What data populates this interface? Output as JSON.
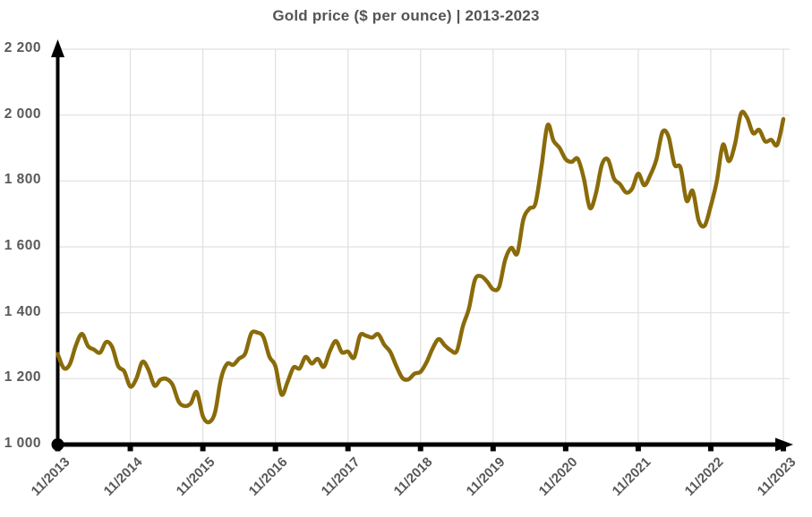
{
  "chart_data": {
    "type": "line",
    "title": "Gold price ($ per ounce) | 2013-2023",
    "series_name": "Gold price",
    "unit": "$ per ounce",
    "x_start_month": "11/2013",
    "x_end_month": "11/2023",
    "x_tick_labels": [
      "11/2013",
      "11/2014",
      "11/2015",
      "11/2016",
      "11/2017",
      "11/2018",
      "11/2019",
      "11/2020",
      "11/2021",
      "11/2022",
      "11/2023"
    ],
    "y_tick_labels": [
      "1 000",
      "1 200",
      "1 400",
      "1 600",
      "1 800",
      "2 000",
      "2 200"
    ],
    "ylim": [
      1000,
      2200
    ],
    "y_step": 200,
    "months_per_x_tick": 12,
    "grid": true,
    "legend": false,
    "monthly_values": [
      1275,
      1232,
      1244,
      1301,
      1336,
      1299,
      1288,
      1279,
      1311,
      1296,
      1238,
      1222,
      1176,
      1200,
      1251,
      1227,
      1179,
      1197,
      1199,
      1181,
      1130,
      1117,
      1125,
      1159,
      1086,
      1068,
      1097,
      1200,
      1245,
      1242,
      1261,
      1276,
      1337,
      1340,
      1327,
      1267,
      1238,
      1152,
      1190,
      1234,
      1231,
      1266,
      1246,
      1260,
      1236,
      1283,
      1314,
      1280,
      1282,
      1264,
      1331,
      1330,
      1325,
      1335,
      1303,
      1281,
      1238,
      1202,
      1198,
      1215,
      1221,
      1250,
      1292,
      1320,
      1301,
      1286,
      1284,
      1359,
      1413,
      1500,
      1511,
      1495,
      1471,
      1479,
      1561,
      1597,
      1580,
      1683,
      1716,
      1732,
      1843,
      1969,
      1922,
      1900,
      1866,
      1858,
      1867,
      1808,
      1718,
      1762,
      1850,
      1865,
      1807,
      1790,
      1765,
      1777,
      1822,
      1787,
      1818,
      1865,
      1948,
      1935,
      1850,
      1840,
      1740,
      1770,
      1680,
      1665,
      1725,
      1800,
      1910,
      1860,
      1912,
      2005,
      1992,
      1945,
      1955,
      1920,
      1925,
      1910,
      1988
    ],
    "colors": {
      "line": "#8a6b0a",
      "axis": "#000000",
      "grid": "#e0e0e0",
      "title_text": "#545454",
      "label_text": "#595959"
    }
  }
}
